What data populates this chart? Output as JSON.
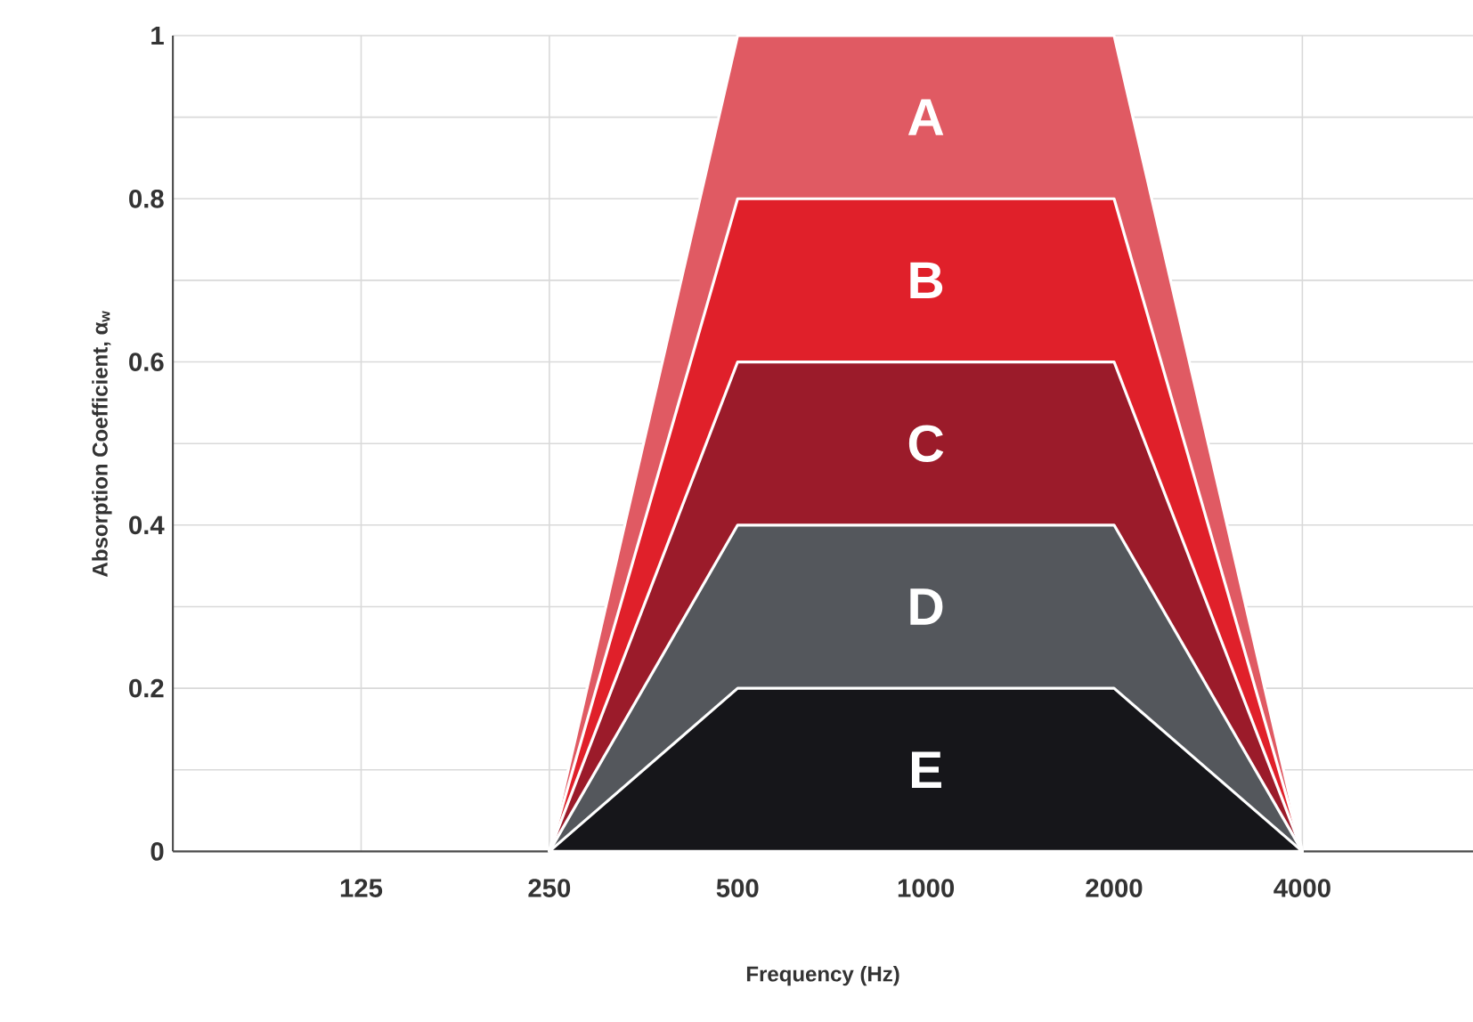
{
  "chart_data": {
    "type": "area",
    "xlabel": "Frequency (Hz)",
    "ylabel": "Absorption Coefficient,  α$_{w}$",
    "log": "x",
    "x": [
      250,
      500,
      1000,
      2000,
      4000
    ],
    "xlim": [
      62.5,
      7500
    ],
    "xticks": [
      125,
      250,
      500,
      1000,
      2000,
      4000
    ],
    "ylim": [
      0,
      1
    ],
    "yticks": [
      0,
      {
        "value": 0.1,
        "label": null
      },
      0.2,
      {
        "value": 0.3,
        "label": null
      },
      0.4,
      {
        "value": 0.5,
        "label": null
      },
      0.6,
      {
        "value": 0.7,
        "label": null
      },
      0.8,
      {
        "value": 0.9,
        "label": null
      },
      1
    ],
    "grid": true,
    "series": [
      {
        "name": "A",
        "color": "#e05a63",
        "values": [
          0,
          1,
          1,
          1,
          0
        ]
      },
      {
        "name": "B",
        "color": "#e0202a",
        "values": [
          0,
          0.8,
          0.8,
          0.8,
          0
        ]
      },
      {
        "name": "C",
        "color": "#9b1b2a",
        "values": [
          0,
          0.6,
          0.6,
          0.6,
          0
        ]
      },
      {
        "name": "D",
        "color": "#54575c",
        "values": [
          0,
          0.4,
          0.4,
          0.4,
          0
        ]
      },
      {
        "name": "E",
        "color": "#16161a",
        "values": [
          0,
          0.2,
          0.2,
          0.2,
          0
        ]
      }
    ]
  }
}
